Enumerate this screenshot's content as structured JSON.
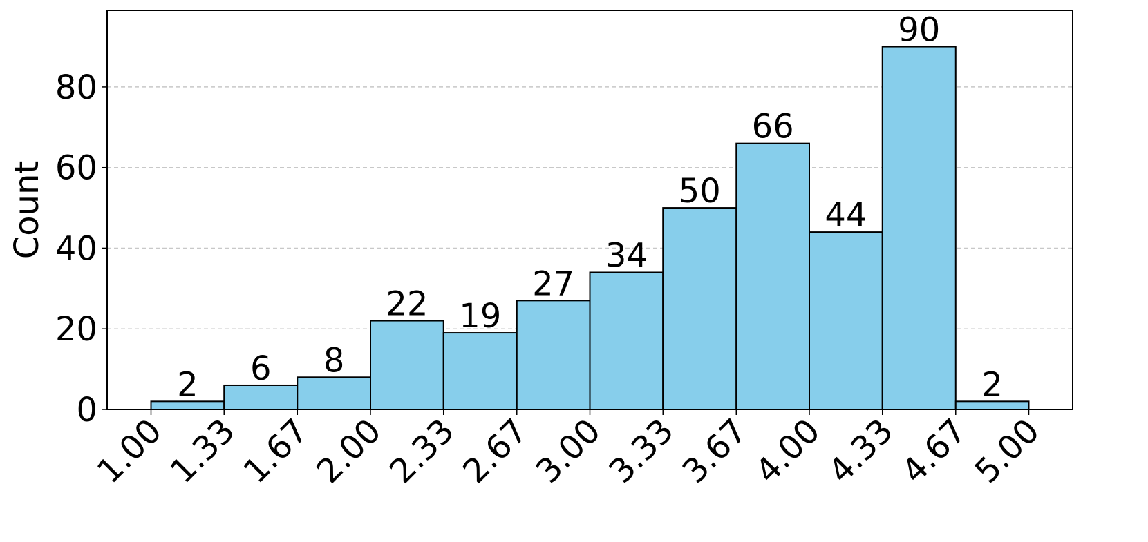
{
  "chart_data": {
    "type": "histogram",
    "y_label": "Count",
    "bins": [
      1,
      1.333,
      1.667,
      2,
      2.333,
      2.667,
      3,
      3.333,
      3.667,
      4,
      4.333,
      4.667,
      5
    ],
    "values": [
      2,
      6,
      8,
      22,
      19,
      27,
      34,
      50,
      66,
      44,
      90,
      2
    ],
    "color": "#87ceeb",
    "xlim": [
      0.8,
      5.2
    ],
    "ylim": [
      0,
      99
    ],
    "xticks": [
      {
        "value": 1,
        "label": "1.00"
      },
      {
        "value": 1.333,
        "label": "1.33"
      },
      {
        "value": 1.667,
        "label": "1.67"
      },
      {
        "value": 2,
        "label": "2.00"
      },
      {
        "value": 2.333,
        "label": "2.33"
      },
      {
        "value": 2.667,
        "label": "2.67"
      },
      {
        "value": 3,
        "label": "3.00"
      },
      {
        "value": 3.333,
        "label": "3.33"
      },
      {
        "value": 3.667,
        "label": "3.67"
      },
      {
        "value": 4,
        "label": "4.00"
      },
      {
        "value": 4.333,
        "label": "4.33"
      },
      {
        "value": 4.667,
        "label": "4.67"
      },
      {
        "value": 5,
        "label": "5.00"
      }
    ],
    "yticks": [
      0,
      20,
      40,
      60,
      80
    ],
    "grid": true
  }
}
